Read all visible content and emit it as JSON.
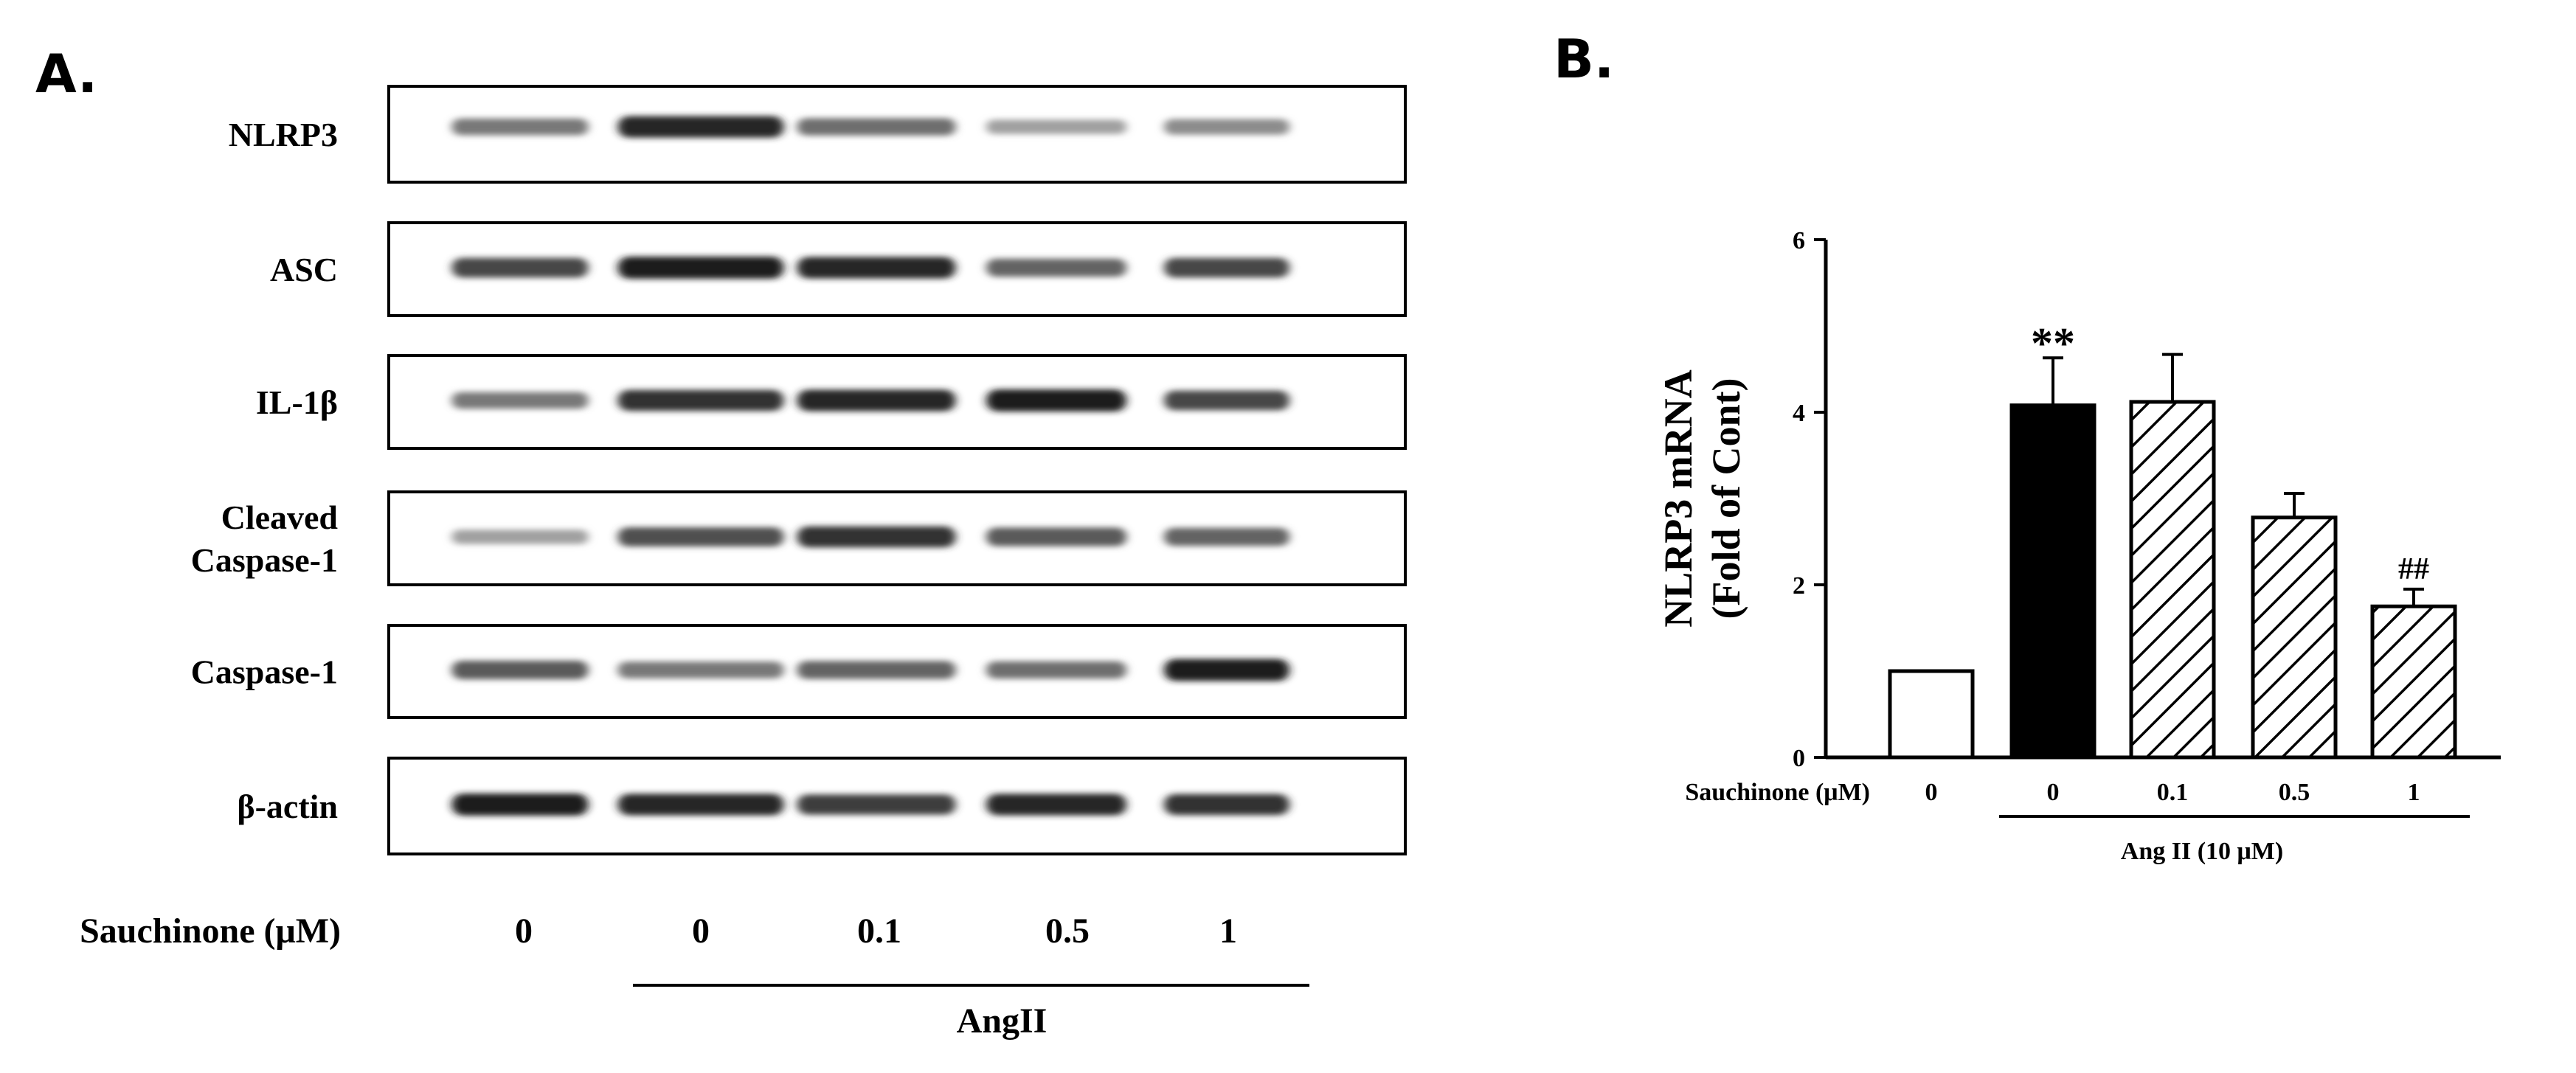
{
  "panel_a": {
    "letter": "A.",
    "blot_labels": [
      {
        "lines": [
          "NLRP3"
        ]
      },
      {
        "lines": [
          "ASC"
        ]
      },
      {
        "lines": [
          "IL-1β"
        ]
      },
      {
        "lines": [
          "Cleaved",
          "Caspase-1"
        ]
      },
      {
        "lines": [
          "Caspase-1"
        ]
      },
      {
        "lines": [
          "β-actin"
        ]
      }
    ],
    "band_intensity": [
      [
        0.55,
        0.95,
        0.6,
        0.35,
        0.45
      ],
      [
        0.8,
        1.0,
        0.95,
        0.65,
        0.8
      ],
      [
        0.55,
        0.9,
        0.95,
        1.0,
        0.8
      ],
      [
        0.35,
        0.75,
        0.9,
        0.7,
        0.65
      ],
      [
        0.7,
        0.55,
        0.65,
        0.6,
        1.0
      ],
      [
        1.0,
        0.95,
        0.85,
        0.95,
        0.9
      ]
    ],
    "treatment_label": "Sauchinone (μM)",
    "lanes": [
      "0",
      "0",
      "0.1",
      "0.5",
      "1"
    ],
    "bracket_label": "AngII"
  },
  "panel_b": {
    "letter": "B.",
    "bracket_label": "Ang II (10 μM)",
    "chart_data": {
      "type": "bar",
      "ylabel_lines": [
        "NLRP3 mRNA",
        "(Fold of Cont)"
      ],
      "xlabel": "Sauchinone (μM)",
      "categories": [
        "0",
        "0",
        "0.1",
        "0.5",
        "1"
      ],
      "values": [
        1.0,
        4.08,
        4.12,
        2.78,
        1.75
      ],
      "errors": [
        0,
        0.55,
        0.55,
        0.28,
        0.2
      ],
      "fills": [
        "white",
        "black",
        "hatch",
        "hatch",
        "hatch"
      ],
      "annotations": [
        "",
        "**",
        "",
        "",
        "##"
      ],
      "ylim": [
        0,
        6
      ],
      "yticks": [
        0,
        2,
        4,
        6
      ],
      "grid": false
    }
  }
}
